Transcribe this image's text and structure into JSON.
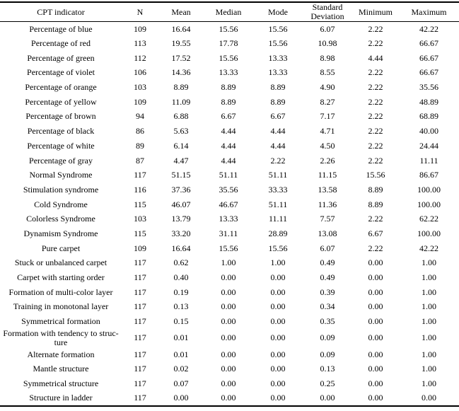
{
  "page": {
    "background_color": "#ffffff",
    "text_color": "#000000",
    "rule_color": "#000000"
  },
  "table": {
    "columns": [
      "CPT indicator",
      "N",
      "Mean",
      "Median",
      "Mode",
      "Standard Deviation",
      "Minimum",
      "Maximum"
    ],
    "rows": [
      [
        "Percentage of blue",
        "109",
        "16.64",
        "15.56",
        "15.56",
        "6.07",
        "2.22",
        "42.22"
      ],
      [
        "Percentage of red",
        "113",
        "19.55",
        "17.78",
        "15.56",
        "10.98",
        "2.22",
        "66.67"
      ],
      [
        "Percentage of green",
        "112",
        "17.52",
        "15.56",
        "13.33",
        "8.98",
        "4.44",
        "66.67"
      ],
      [
        "Percentage of violet",
        "106",
        "14.36",
        "13.33",
        "13.33",
        "8.55",
        "2.22",
        "66.67"
      ],
      [
        "Percentage of orange",
        "103",
        "8.89",
        "8.89",
        "8.89",
        "4.90",
        "2.22",
        "35.56"
      ],
      [
        "Percentage of yellow",
        "109",
        "11.09",
        "8.89",
        "8.89",
        "8.27",
        "2.22",
        "48.89"
      ],
      [
        "Percentage of brown",
        "94",
        "6.88",
        "6.67",
        "6.67",
        "7.17",
        "2.22",
        "68.89"
      ],
      [
        "Percentage of black",
        "86",
        "5.63",
        "4.44",
        "4.44",
        "4.71",
        "2.22",
        "40.00"
      ],
      [
        "Percentage of white",
        "89",
        "6.14",
        "4.44",
        "4.44",
        "4.50",
        "2.22",
        "24.44"
      ],
      [
        "Percentage of gray",
        "87",
        "4.47",
        "4.44",
        "2.22",
        "2.26",
        "2.22",
        "11.11"
      ],
      [
        "Normal Syndrome",
        "117",
        "51.15",
        "51.11",
        "51.11",
        "11.15",
        "15.56",
        "86.67"
      ],
      [
        "Stimulation syndrome",
        "116",
        "37.36",
        "35.56",
        "33.33",
        "13.58",
        "8.89",
        "100.00"
      ],
      [
        "Cold Syndrome",
        "115",
        "46.07",
        "46.67",
        "51.11",
        "11.36",
        "8.89",
        "100.00"
      ],
      [
        "Colorless Syndrome",
        "103",
        "13.79",
        "13.33",
        "11.11",
        "7.57",
        "2.22",
        "62.22"
      ],
      [
        "Dynamism Syndrome",
        "115",
        "33.20",
        "31.11",
        "28.89",
        "13.08",
        "6.67",
        "100.00"
      ],
      [
        "Pure carpet",
        "109",
        "16.64",
        "15.56",
        "15.56",
        "6.07",
        "2.22",
        "42.22"
      ],
      [
        "Stuck or unbalanced carpet",
        "117",
        "0.62",
        "1.00",
        "1.00",
        "0.49",
        "0.00",
        "1.00"
      ],
      [
        "Carpet with starting order",
        "117",
        "0.40",
        "0.00",
        "0.00",
        "0.49",
        "0.00",
        "1.00"
      ],
      [
        "Formation of multi-color layer",
        "117",
        "0.19",
        "0.00",
        "0.00",
        "0.39",
        "0.00",
        "1.00"
      ],
      [
        "Training in monotonal layer",
        "117",
        "0.13",
        "0.00",
        "0.00",
        "0.34",
        "0.00",
        "1.00"
      ],
      [
        "Symmetrical formation",
        "117",
        "0.15",
        "0.00",
        "0.00",
        "0.35",
        "0.00",
        "1.00"
      ],
      [
        "Formation with tendency to struc­ture",
        "117",
        "0.01",
        "0.00",
        "0.00",
        "0.09",
        "0.00",
        "1.00"
      ],
      [
        "Alternate formation",
        "117",
        "0.01",
        "0.00",
        "0.00",
        "0.09",
        "0.00",
        "1.00"
      ],
      [
        "Mantle structure",
        "117",
        "0.02",
        "0.00",
        "0.00",
        "0.13",
        "0.00",
        "1.00"
      ],
      [
        "Symmetrical structure",
        "117",
        "0.07",
        "0.00",
        "0.00",
        "0.25",
        "0.00",
        "1.00"
      ],
      [
        "Structure in ladder",
        "117",
        "0.00",
        "0.00",
        "0.00",
        "0.00",
        "0.00",
        "0.00"
      ]
    ]
  }
}
